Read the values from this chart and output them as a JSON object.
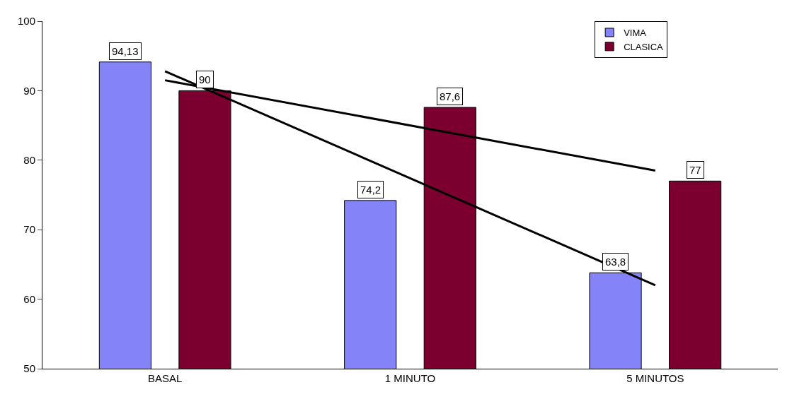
{
  "chart_data": {
    "type": "bar",
    "categories": [
      "BASAL",
      "1 MINUTO",
      "5 MINUTOS"
    ],
    "series": [
      {
        "name": "VIMA",
        "color": "#8484f8",
        "values": [
          94.13,
          74.2,
          63.8
        ],
        "value_labels": [
          "94,13",
          "74,2",
          "63,8"
        ]
      },
      {
        "name": "CLASICA",
        "color": "#7b0030",
        "values": [
          90,
          87.6,
          77
        ],
        "value_labels": [
          "90",
          "87,6",
          "77"
        ]
      },
      {
        "type": "line",
        "color": "#000000",
        "x": [
          "BASAL",
          "5 MINUTOS"
        ],
        "values": [
          92.8,
          62
        ]
      },
      {
        "type": "line",
        "color": "#000000",
        "x": [
          "BASAL",
          "5 MINUTOS"
        ],
        "values": [
          91.5,
          78.5
        ]
      }
    ],
    "ylim": [
      50,
      100
    ],
    "yticks": [
      50,
      60,
      70,
      80,
      90,
      100
    ],
    "grid": false,
    "legend": "top right"
  }
}
